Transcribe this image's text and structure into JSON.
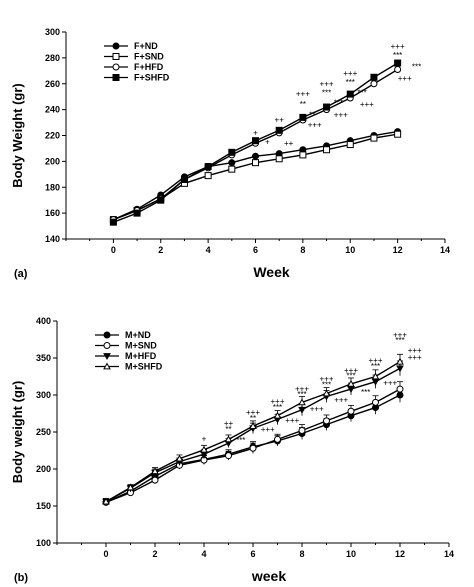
{
  "chart_data": [
    {
      "type": "line",
      "panel_label": "(a)",
      "xlabel": "Week",
      "ylabel": "Body Weight (gr)",
      "xlim": [
        -2,
        14
      ],
      "ylim": [
        140,
        300
      ],
      "xticks": [
        0,
        2,
        4,
        6,
        8,
        10,
        12,
        14
      ],
      "yticks": [
        140,
        160,
        180,
        200,
        220,
        240,
        260,
        280,
        300
      ],
      "legend_position": "top-left",
      "x": [
        0,
        1,
        2,
        3,
        4,
        5,
        6,
        7,
        8,
        9,
        10,
        11,
        12
      ],
      "series": [
        {
          "name": "F+ND",
          "marker": "circle-filled",
          "values": [
            155,
            163,
            174,
            188,
            196,
            199,
            204,
            206,
            209,
            212,
            216,
            220,
            223
          ]
        },
        {
          "name": "F+SND",
          "marker": "square-open",
          "values": [
            155,
            162,
            171,
            183,
            189,
            194,
            199,
            202,
            205,
            209,
            213,
            218,
            221
          ]
        },
        {
          "name": "F+HFD",
          "marker": "circle-open",
          "values": [
            155,
            162,
            171,
            186,
            195,
            205,
            214,
            222,
            232,
            240,
            249,
            260,
            271
          ]
        },
        {
          "name": "F+SHFD",
          "marker": "square-filled",
          "values": [
            153,
            160,
            170,
            186,
            196,
            207,
            216,
            224,
            234,
            242,
            252,
            265,
            276
          ]
        }
      ],
      "annotations": [
        {
          "x": 6,
          "y": 220,
          "text": "+"
        },
        {
          "x": 6.5,
          "y": 213,
          "text": "+"
        },
        {
          "x": 7,
          "y": 230,
          "text": "++"
        },
        {
          "x": 7.4,
          "y": 212,
          "text": "++"
        },
        {
          "x": 8,
          "y": 250,
          "text": "+++"
        },
        {
          "x": 8,
          "y": 242,
          "text": "**"
        },
        {
          "x": 8.4,
          "y": 234,
          "text": "**"
        },
        {
          "x": 8.5,
          "y": 226,
          "text": "+++"
        },
        {
          "x": 9,
          "y": 258,
          "text": "+++"
        },
        {
          "x": 9,
          "y": 251,
          "text": "***"
        },
        {
          "x": 9.5,
          "y": 243,
          "text": "***"
        },
        {
          "x": 9.6,
          "y": 234,
          "text": "+++"
        },
        {
          "x": 10,
          "y": 266,
          "text": "+++"
        },
        {
          "x": 10,
          "y": 259,
          "text": "***"
        },
        {
          "x": 10.5,
          "y": 251,
          "text": "***"
        },
        {
          "x": 10.7,
          "y": 242,
          "text": "+++"
        },
        {
          "x": 12,
          "y": 287,
          "text": "+++"
        },
        {
          "x": 12,
          "y": 280,
          "text": "***"
        },
        {
          "x": 12.8,
          "y": 271,
          "text": "***"
        },
        {
          "x": 12.3,
          "y": 262,
          "text": "+++"
        }
      ]
    },
    {
      "type": "line",
      "panel_label": "(b)",
      "xlabel": "week",
      "ylabel": "Body weight (gr)",
      "xlim": [
        -2,
        14
      ],
      "ylim": [
        100,
        400
      ],
      "xticks": [
        0,
        2,
        4,
        6,
        8,
        10,
        12,
        14
      ],
      "yticks": [
        100,
        150,
        200,
        250,
        300,
        350,
        400
      ],
      "legend_position": "top-left",
      "x": [
        0,
        1,
        2,
        3,
        4,
        5,
        6,
        7,
        8,
        9,
        10,
        11,
        12
      ],
      "series": [
        {
          "name": "M+ND",
          "marker": "circle-filled",
          "values": [
            155,
            170,
            190,
            207,
            213,
            220,
            230,
            238,
            248,
            260,
            272,
            283,
            300
          ]
        },
        {
          "name": "M+SND",
          "marker": "circle-open",
          "values": [
            155,
            168,
            185,
            205,
            212,
            218,
            228,
            240,
            252,
            265,
            278,
            290,
            308
          ]
        },
        {
          "name": "M+HFD",
          "marker": "triangle-down-filled",
          "values": [
            156,
            174,
            195,
            210,
            220,
            235,
            255,
            267,
            280,
            298,
            308,
            318,
            336
          ]
        },
        {
          "name": "M+SHFD",
          "marker": "triangle-up-open",
          "values": [
            156,
            175,
            197,
            214,
            226,
            240,
            258,
            272,
            290,
            302,
            315,
            325,
            345
          ]
        }
      ],
      "errors": [
        4,
        4,
        5,
        5,
        6,
        6,
        7,
        7,
        8,
        8,
        8,
        9,
        10
      ],
      "annotations": [
        {
          "x": 4,
          "y": 237,
          "text": "+"
        },
        {
          "x": 5,
          "y": 258,
          "text": "++"
        },
        {
          "x": 5,
          "y": 250,
          "text": "**"
        },
        {
          "x": 5.5,
          "y": 235,
          "text": "***"
        },
        {
          "x": 6,
          "y": 273,
          "text": "+++"
        },
        {
          "x": 6,
          "y": 265,
          "text": "**"
        },
        {
          "x": 6.6,
          "y": 250,
          "text": "+++"
        },
        {
          "x": 7,
          "y": 288,
          "text": "+++"
        },
        {
          "x": 7,
          "y": 280,
          "text": "***"
        },
        {
          "x": 7.6,
          "y": 262,
          "text": "+++"
        },
        {
          "x": 8,
          "y": 305,
          "text": "+++"
        },
        {
          "x": 8,
          "y": 297,
          "text": "***"
        },
        {
          "x": 8.6,
          "y": 278,
          "text": "+++"
        },
        {
          "x": 9,
          "y": 318,
          "text": "+++"
        },
        {
          "x": 9,
          "y": 310,
          "text": "***"
        },
        {
          "x": 9.6,
          "y": 290,
          "text": "+++"
        },
        {
          "x": 10,
          "y": 330,
          "text": "+++"
        },
        {
          "x": 10,
          "y": 322,
          "text": "***"
        },
        {
          "x": 10.6,
          "y": 300,
          "text": "***"
        },
        {
          "x": 11,
          "y": 343,
          "text": "+++"
        },
        {
          "x": 11,
          "y": 335,
          "text": "***"
        },
        {
          "x": 11.6,
          "y": 313,
          "text": "+++"
        },
        {
          "x": 12,
          "y": 378,
          "text": "+++"
        },
        {
          "x": 12,
          "y": 370,
          "text": "***"
        },
        {
          "x": 12.6,
          "y": 357,
          "text": "+++"
        },
        {
          "x": 12.6,
          "y": 347,
          "text": "+++"
        }
      ]
    }
  ]
}
